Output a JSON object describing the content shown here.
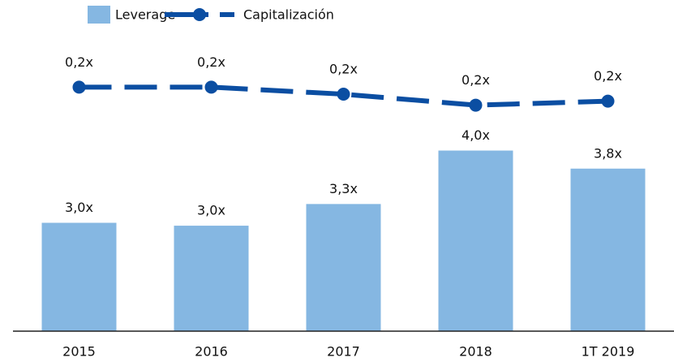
{
  "chart_data": {
    "type": "bar",
    "categories": [
      "2015",
      "2016",
      "2017",
      "2018",
      "1T 2019"
    ],
    "series": [
      {
        "name": "Leverage",
        "type": "bar",
        "color": "#85b7e2",
        "values": [
          3.0,
          2.96,
          3.26,
          4.0,
          3.75
        ],
        "value_labels": [
          "3,0x",
          "3,0x",
          "3,3x",
          "4,0x",
          "3,8x"
        ]
      },
      {
        "name": "Capitalización",
        "type": "line",
        "axis": "y2",
        "color": "#0b4ea2",
        "values": [
          0.244,
          0.244,
          0.237,
          0.226,
          0.23
        ],
        "value_labels": [
          "0,2x",
          "0,2x",
          "0,2x",
          "0,2x",
          "0,2x"
        ]
      }
    ],
    "ylim": [
      1.5,
      4.5
    ],
    "y2lim": [
      0,
      0.25
    ],
    "legend": "top"
  }
}
